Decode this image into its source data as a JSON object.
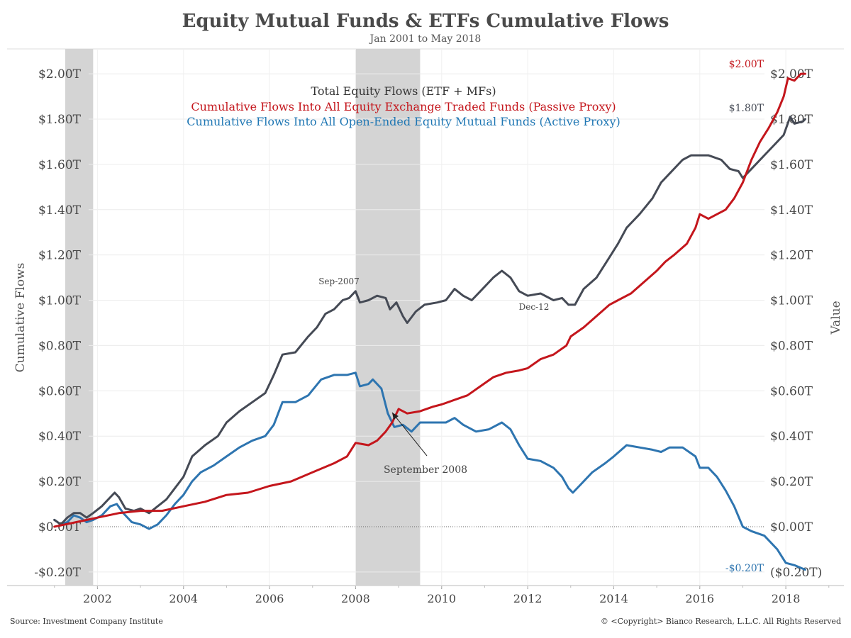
{
  "title": "Equity Mutual Funds & ETFs Cumulative Flows",
  "subtitle": "Jan 2001 to May 2018",
  "source": "Source: Investment Company Institute",
  "copyright": "© <Copyright> Bianco Research, L.L.C. All Rights Reserved",
  "chart_data": {
    "type": "line",
    "ylabel": "Cumulative Flows",
    "ylabel_right": "Value",
    "ylim": [
      -0.26,
      2.11
    ],
    "xlim": [
      1999.9,
      2019.35
    ],
    "x_ticks": [
      {
        "v": 2002,
        "label": "2002"
      },
      {
        "v": 2004,
        "label": "2004"
      },
      {
        "v": 2006,
        "label": "2006"
      },
      {
        "v": 2008,
        "label": "2008"
      },
      {
        "v": 2010,
        "label": "2010"
      },
      {
        "v": 2012,
        "label": "2012"
      },
      {
        "v": 2014,
        "label": "2014"
      },
      {
        "v": 2016,
        "label": "2016"
      },
      {
        "v": 2018,
        "label": "2018"
      }
    ],
    "y_ticks_left": [
      {
        "v": 2.0,
        "label": "$2.00T"
      },
      {
        "v": 1.8,
        "label": "$1.80T"
      },
      {
        "v": 1.6,
        "label": "$1.60T"
      },
      {
        "v": 1.4,
        "label": "$1.40T"
      },
      {
        "v": 1.2,
        "label": "$1.20T"
      },
      {
        "v": 1.0,
        "label": "$1.00T"
      },
      {
        "v": 0.8,
        "label": "$0.80T"
      },
      {
        "v": 0.6,
        "label": "$0.60T"
      },
      {
        "v": 0.4,
        "label": "$0.40T"
      },
      {
        "v": 0.2,
        "label": "$0.20T"
      },
      {
        "v": 0.0,
        "label": "$0.00T"
      },
      {
        "v": -0.2,
        "label": "-$0.20T"
      }
    ],
    "y_ticks_right": [
      {
        "v": 2.0,
        "label": "$2.00T"
      },
      {
        "v": 1.8,
        "label": "$1.80T"
      },
      {
        "v": 1.6,
        "label": "$1.60T"
      },
      {
        "v": 1.4,
        "label": "$1.40T"
      },
      {
        "v": 1.2,
        "label": "$1.20T"
      },
      {
        "v": 1.0,
        "label": "$1.00T"
      },
      {
        "v": 0.8,
        "label": "$0.80T"
      },
      {
        "v": 0.6,
        "label": "$0.60T"
      },
      {
        "v": 0.4,
        "label": "$0.40T"
      },
      {
        "v": 0.2,
        "label": "$0.20T"
      },
      {
        "v": 0.0,
        "label": "$0.00T"
      },
      {
        "v": -0.2,
        "label": "($0.20T)"
      }
    ],
    "recessions": [
      {
        "start": 2001.25,
        "end": 2001.9
      },
      {
        "start": 2008.0,
        "end": 2009.5
      }
    ],
    "legend": [
      {
        "text": "Total Equity Flows (ETF + MFs)",
        "color": "#333333"
      },
      {
        "text": "Cumulative Flows Into All Equity Exchange Traded Funds (Passive Proxy)",
        "color": "#c4161c"
      },
      {
        "text": "Cumulative Flows Into All Open-Ended Equity Mutual Funds (Active Proxy)",
        "color": "#1f77b4"
      }
    ],
    "series": [
      {
        "name": "Total Equity Flows (ETF + MFs)",
        "color": "#454a55",
        "end_label": "$1.80T",
        "points": [
          [
            2001.0,
            0.03
          ],
          [
            2001.15,
            0.01
          ],
          [
            2001.3,
            0.04
          ],
          [
            2001.45,
            0.06
          ],
          [
            2001.6,
            0.06
          ],
          [
            2001.75,
            0.04
          ],
          [
            2001.9,
            0.06
          ],
          [
            2002.1,
            0.09
          ],
          [
            2002.3,
            0.13
          ],
          [
            2002.4,
            0.15
          ],
          [
            2002.5,
            0.13
          ],
          [
            2002.65,
            0.08
          ],
          [
            2002.85,
            0.07
          ],
          [
            2003.0,
            0.08
          ],
          [
            2003.2,
            0.06
          ],
          [
            2003.4,
            0.09
          ],
          [
            2003.6,
            0.12
          ],
          [
            2003.8,
            0.17
          ],
          [
            2004.0,
            0.22
          ],
          [
            2004.2,
            0.31
          ],
          [
            2004.5,
            0.36
          ],
          [
            2004.8,
            0.4
          ],
          [
            2005.0,
            0.46
          ],
          [
            2005.3,
            0.51
          ],
          [
            2005.6,
            0.55
          ],
          [
            2005.9,
            0.59
          ],
          [
            2006.1,
            0.67
          ],
          [
            2006.3,
            0.76
          ],
          [
            2006.6,
            0.77
          ],
          [
            2006.9,
            0.84
          ],
          [
            2007.1,
            0.88
          ],
          [
            2007.3,
            0.94
          ],
          [
            2007.5,
            0.96
          ],
          [
            2007.7,
            1.0
          ],
          [
            2007.85,
            1.01
          ],
          [
            2008.0,
            1.04
          ],
          [
            2008.1,
            0.99
          ],
          [
            2008.3,
            1.0
          ],
          [
            2008.5,
            1.02
          ],
          [
            2008.7,
            1.01
          ],
          [
            2008.8,
            0.96
          ],
          [
            2008.95,
            0.99
          ],
          [
            2009.1,
            0.93
          ],
          [
            2009.2,
            0.9
          ],
          [
            2009.4,
            0.95
          ],
          [
            2009.6,
            0.98
          ],
          [
            2009.9,
            0.99
          ],
          [
            2010.1,
            1.0
          ],
          [
            2010.3,
            1.05
          ],
          [
            2010.5,
            1.02
          ],
          [
            2010.7,
            1.0
          ],
          [
            2010.9,
            1.04
          ],
          [
            2011.2,
            1.1
          ],
          [
            2011.4,
            1.13
          ],
          [
            2011.6,
            1.1
          ],
          [
            2011.8,
            1.04
          ],
          [
            2012.0,
            1.02
          ],
          [
            2012.3,
            1.03
          ],
          [
            2012.6,
            1.0
          ],
          [
            2012.8,
            1.01
          ],
          [
            2012.95,
            0.98
          ],
          [
            2013.1,
            0.98
          ],
          [
            2013.3,
            1.05
          ],
          [
            2013.6,
            1.1
          ],
          [
            2013.9,
            1.19
          ],
          [
            2014.1,
            1.25
          ],
          [
            2014.3,
            1.32
          ],
          [
            2014.6,
            1.38
          ],
          [
            2014.9,
            1.45
          ],
          [
            2015.1,
            1.52
          ],
          [
            2015.3,
            1.56
          ],
          [
            2015.6,
            1.62
          ],
          [
            2015.8,
            1.64
          ],
          [
            2016.0,
            1.64
          ],
          [
            2016.2,
            1.64
          ],
          [
            2016.5,
            1.62
          ],
          [
            2016.7,
            1.58
          ],
          [
            2016.9,
            1.57
          ],
          [
            2017.0,
            1.54
          ],
          [
            2017.2,
            1.58
          ],
          [
            2017.5,
            1.64
          ],
          [
            2017.8,
            1.7
          ],
          [
            2017.95,
            1.73
          ],
          [
            2018.1,
            1.81
          ],
          [
            2018.2,
            1.78
          ],
          [
            2018.4,
            1.79
          ],
          [
            2018.45,
            1.8
          ]
        ]
      },
      {
        "name": "Cumulative Flows Into All Equity Exchange Traded Funds (Passive Proxy)",
        "color": "#c4161c",
        "end_label": "$2.00T",
        "points": [
          [
            2001.0,
            0.0
          ],
          [
            2001.5,
            0.02
          ],
          [
            2002.0,
            0.04
          ],
          [
            2002.5,
            0.06
          ],
          [
            2003.0,
            0.07
          ],
          [
            2003.5,
            0.07
          ],
          [
            2004.0,
            0.09
          ],
          [
            2004.5,
            0.11
          ],
          [
            2005.0,
            0.14
          ],
          [
            2005.5,
            0.15
          ],
          [
            2006.0,
            0.18
          ],
          [
            2006.5,
            0.2
          ],
          [
            2007.0,
            0.24
          ],
          [
            2007.5,
            0.28
          ],
          [
            2007.8,
            0.31
          ],
          [
            2008.0,
            0.37
          ],
          [
            2008.3,
            0.36
          ],
          [
            2008.5,
            0.38
          ],
          [
            2008.7,
            0.42
          ],
          [
            2008.85,
            0.46
          ],
          [
            2009.0,
            0.52
          ],
          [
            2009.2,
            0.5
          ],
          [
            2009.5,
            0.51
          ],
          [
            2009.8,
            0.53
          ],
          [
            2010.0,
            0.54
          ],
          [
            2010.3,
            0.56
          ],
          [
            2010.6,
            0.58
          ],
          [
            2010.9,
            0.62
          ],
          [
            2011.2,
            0.66
          ],
          [
            2011.5,
            0.68
          ],
          [
            2011.8,
            0.69
          ],
          [
            2012.0,
            0.7
          ],
          [
            2012.3,
            0.74
          ],
          [
            2012.6,
            0.76
          ],
          [
            2012.9,
            0.8
          ],
          [
            2013.0,
            0.84
          ],
          [
            2013.3,
            0.88
          ],
          [
            2013.6,
            0.93
          ],
          [
            2013.9,
            0.98
          ],
          [
            2014.1,
            1.0
          ],
          [
            2014.4,
            1.03
          ],
          [
            2014.7,
            1.08
          ],
          [
            2015.0,
            1.13
          ],
          [
            2015.2,
            1.17
          ],
          [
            2015.4,
            1.2
          ],
          [
            2015.7,
            1.25
          ],
          [
            2015.9,
            1.32
          ],
          [
            2016.0,
            1.38
          ],
          [
            2016.2,
            1.36
          ],
          [
            2016.4,
            1.38
          ],
          [
            2016.6,
            1.4
          ],
          [
            2016.8,
            1.45
          ],
          [
            2017.0,
            1.52
          ],
          [
            2017.2,
            1.62
          ],
          [
            2017.4,
            1.7
          ],
          [
            2017.6,
            1.76
          ],
          [
            2017.8,
            1.83
          ],
          [
            2017.95,
            1.9
          ],
          [
            2018.05,
            1.98
          ],
          [
            2018.2,
            1.97
          ],
          [
            2018.35,
            2.0
          ],
          [
            2018.45,
            2.0
          ]
        ]
      },
      {
        "name": "Cumulative Flows Into All Open-Ended Equity Mutual Funds (Active Proxy)",
        "color": "#2e75b0",
        "end_label": "-$0.20T",
        "points": [
          [
            2001.0,
            0.03
          ],
          [
            2001.15,
            0.01
          ],
          [
            2001.3,
            0.02
          ],
          [
            2001.45,
            0.05
          ],
          [
            2001.6,
            0.04
          ],
          [
            2001.75,
            0.02
          ],
          [
            2001.9,
            0.03
          ],
          [
            2002.1,
            0.05
          ],
          [
            2002.3,
            0.09
          ],
          [
            2002.45,
            0.1
          ],
          [
            2002.6,
            0.06
          ],
          [
            2002.8,
            0.02
          ],
          [
            2003.0,
            0.01
          ],
          [
            2003.2,
            -0.01
          ],
          [
            2003.4,
            0.01
          ],
          [
            2003.6,
            0.05
          ],
          [
            2003.8,
            0.1
          ],
          [
            2004.0,
            0.14
          ],
          [
            2004.2,
            0.2
          ],
          [
            2004.4,
            0.24
          ],
          [
            2004.7,
            0.27
          ],
          [
            2005.0,
            0.31
          ],
          [
            2005.3,
            0.35
          ],
          [
            2005.6,
            0.38
          ],
          [
            2005.9,
            0.4
          ],
          [
            2006.1,
            0.45
          ],
          [
            2006.3,
            0.55
          ],
          [
            2006.6,
            0.55
          ],
          [
            2006.9,
            0.58
          ],
          [
            2007.2,
            0.65
          ],
          [
            2007.5,
            0.67
          ],
          [
            2007.8,
            0.67
          ],
          [
            2008.0,
            0.68
          ],
          [
            2008.1,
            0.62
          ],
          [
            2008.3,
            0.63
          ],
          [
            2008.4,
            0.65
          ],
          [
            2008.6,
            0.61
          ],
          [
            2008.75,
            0.5
          ],
          [
            2008.9,
            0.44
          ],
          [
            2009.1,
            0.45
          ],
          [
            2009.3,
            0.42
          ],
          [
            2009.5,
            0.46
          ],
          [
            2009.8,
            0.46
          ],
          [
            2010.1,
            0.46
          ],
          [
            2010.3,
            0.48
          ],
          [
            2010.5,
            0.45
          ],
          [
            2010.8,
            0.42
          ],
          [
            2011.1,
            0.43
          ],
          [
            2011.4,
            0.46
          ],
          [
            2011.6,
            0.43
          ],
          [
            2011.8,
            0.36
          ],
          [
            2012.0,
            0.3
          ],
          [
            2012.3,
            0.29
          ],
          [
            2012.6,
            0.26
          ],
          [
            2012.8,
            0.22
          ],
          [
            2012.95,
            0.17
          ],
          [
            2013.05,
            0.15
          ],
          [
            2013.2,
            0.18
          ],
          [
            2013.5,
            0.24
          ],
          [
            2013.8,
            0.28
          ],
          [
            2014.0,
            0.31
          ],
          [
            2014.3,
            0.36
          ],
          [
            2014.6,
            0.35
          ],
          [
            2014.9,
            0.34
          ],
          [
            2015.1,
            0.33
          ],
          [
            2015.3,
            0.35
          ],
          [
            2015.6,
            0.35
          ],
          [
            2015.9,
            0.31
          ],
          [
            2016.0,
            0.26
          ],
          [
            2016.2,
            0.26
          ],
          [
            2016.4,
            0.22
          ],
          [
            2016.6,
            0.16
          ],
          [
            2016.8,
            0.09
          ],
          [
            2017.0,
            0.0
          ],
          [
            2017.2,
            -0.02
          ],
          [
            2017.5,
            -0.04
          ],
          [
            2017.8,
            -0.1
          ],
          [
            2018.0,
            -0.16
          ],
          [
            2018.2,
            -0.17
          ],
          [
            2018.45,
            -0.19
          ]
        ]
      }
    ],
    "annotations": {
      "sep2007": "Sep-2007",
      "dec12": "Dec-12",
      "sep2008": "September 2008"
    }
  }
}
